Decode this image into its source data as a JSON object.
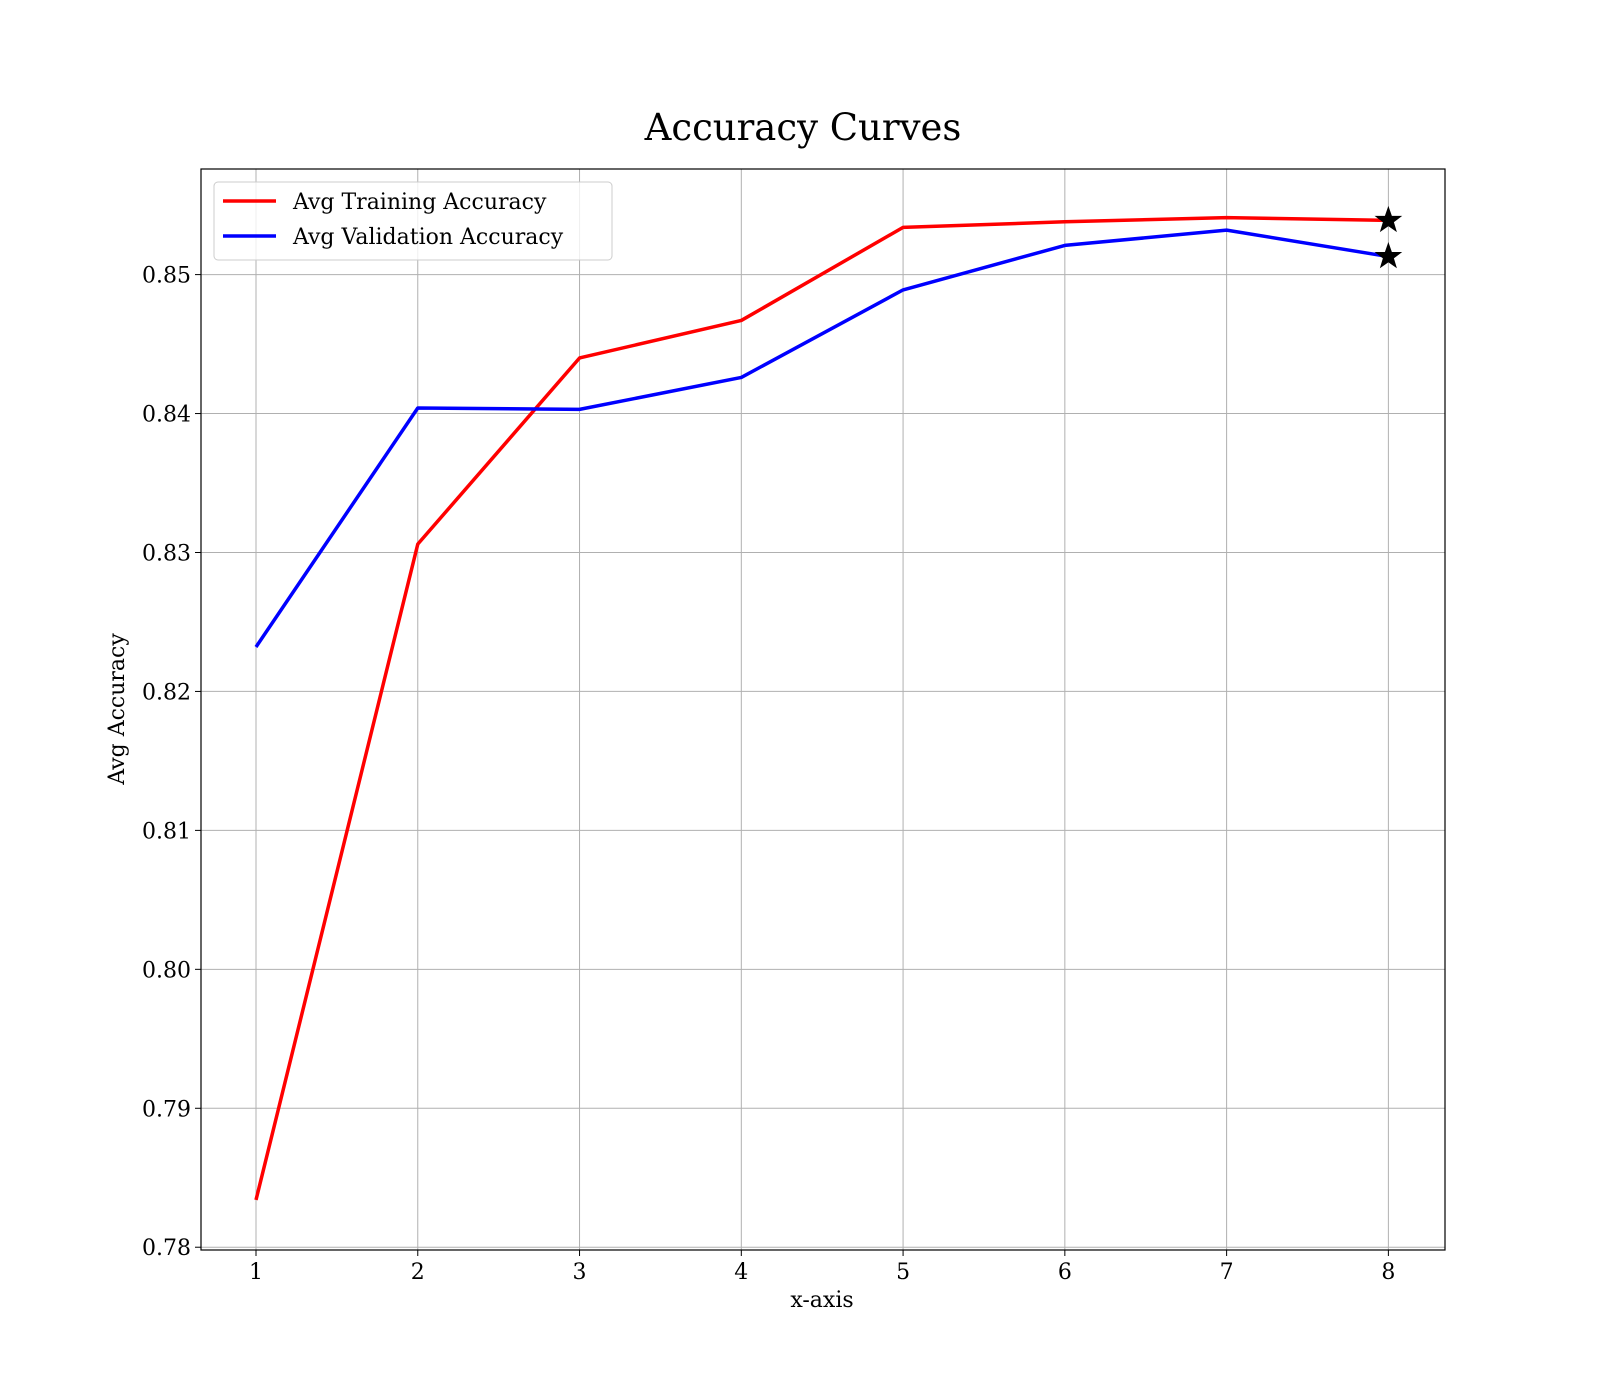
{
  "chart_data": {
    "type": "line",
    "title": "Accuracy Curves",
    "xlabel": "x-axis",
    "ylabel": "Avg Accuracy",
    "x": [
      1,
      2,
      3,
      4,
      5,
      6,
      7,
      8
    ],
    "xticks": [
      "1",
      "2",
      "3",
      "4",
      "5",
      "6",
      "7",
      "8"
    ],
    "yticks": [
      "0.78",
      "0.79",
      "0.80",
      "0.81",
      "0.82",
      "0.83",
      "0.84",
      "0.85"
    ],
    "ytick_values": [
      0.78,
      0.79,
      0.8,
      0.81,
      0.82,
      0.83,
      0.84,
      0.85
    ],
    "xlim": [
      0.66,
      8.35
    ],
    "ylim": [
      0.7798,
      0.8576
    ],
    "grid": true,
    "legend_position": "top-left",
    "series": [
      {
        "name": "Avg Training Accuracy",
        "color": "#ff0000",
        "values": [
          0.7834,
          0.8306,
          0.844,
          0.8467,
          0.8534,
          0.8538,
          0.8541,
          0.8539
        ],
        "end_marker": "star"
      },
      {
        "name": "Avg Validation Accuracy",
        "color": "#0000ff",
        "values": [
          0.8232,
          0.8404,
          0.8403,
          0.8426,
          0.8489,
          0.8521,
          0.8532,
          0.8513
        ],
        "end_marker": "star"
      }
    ]
  }
}
